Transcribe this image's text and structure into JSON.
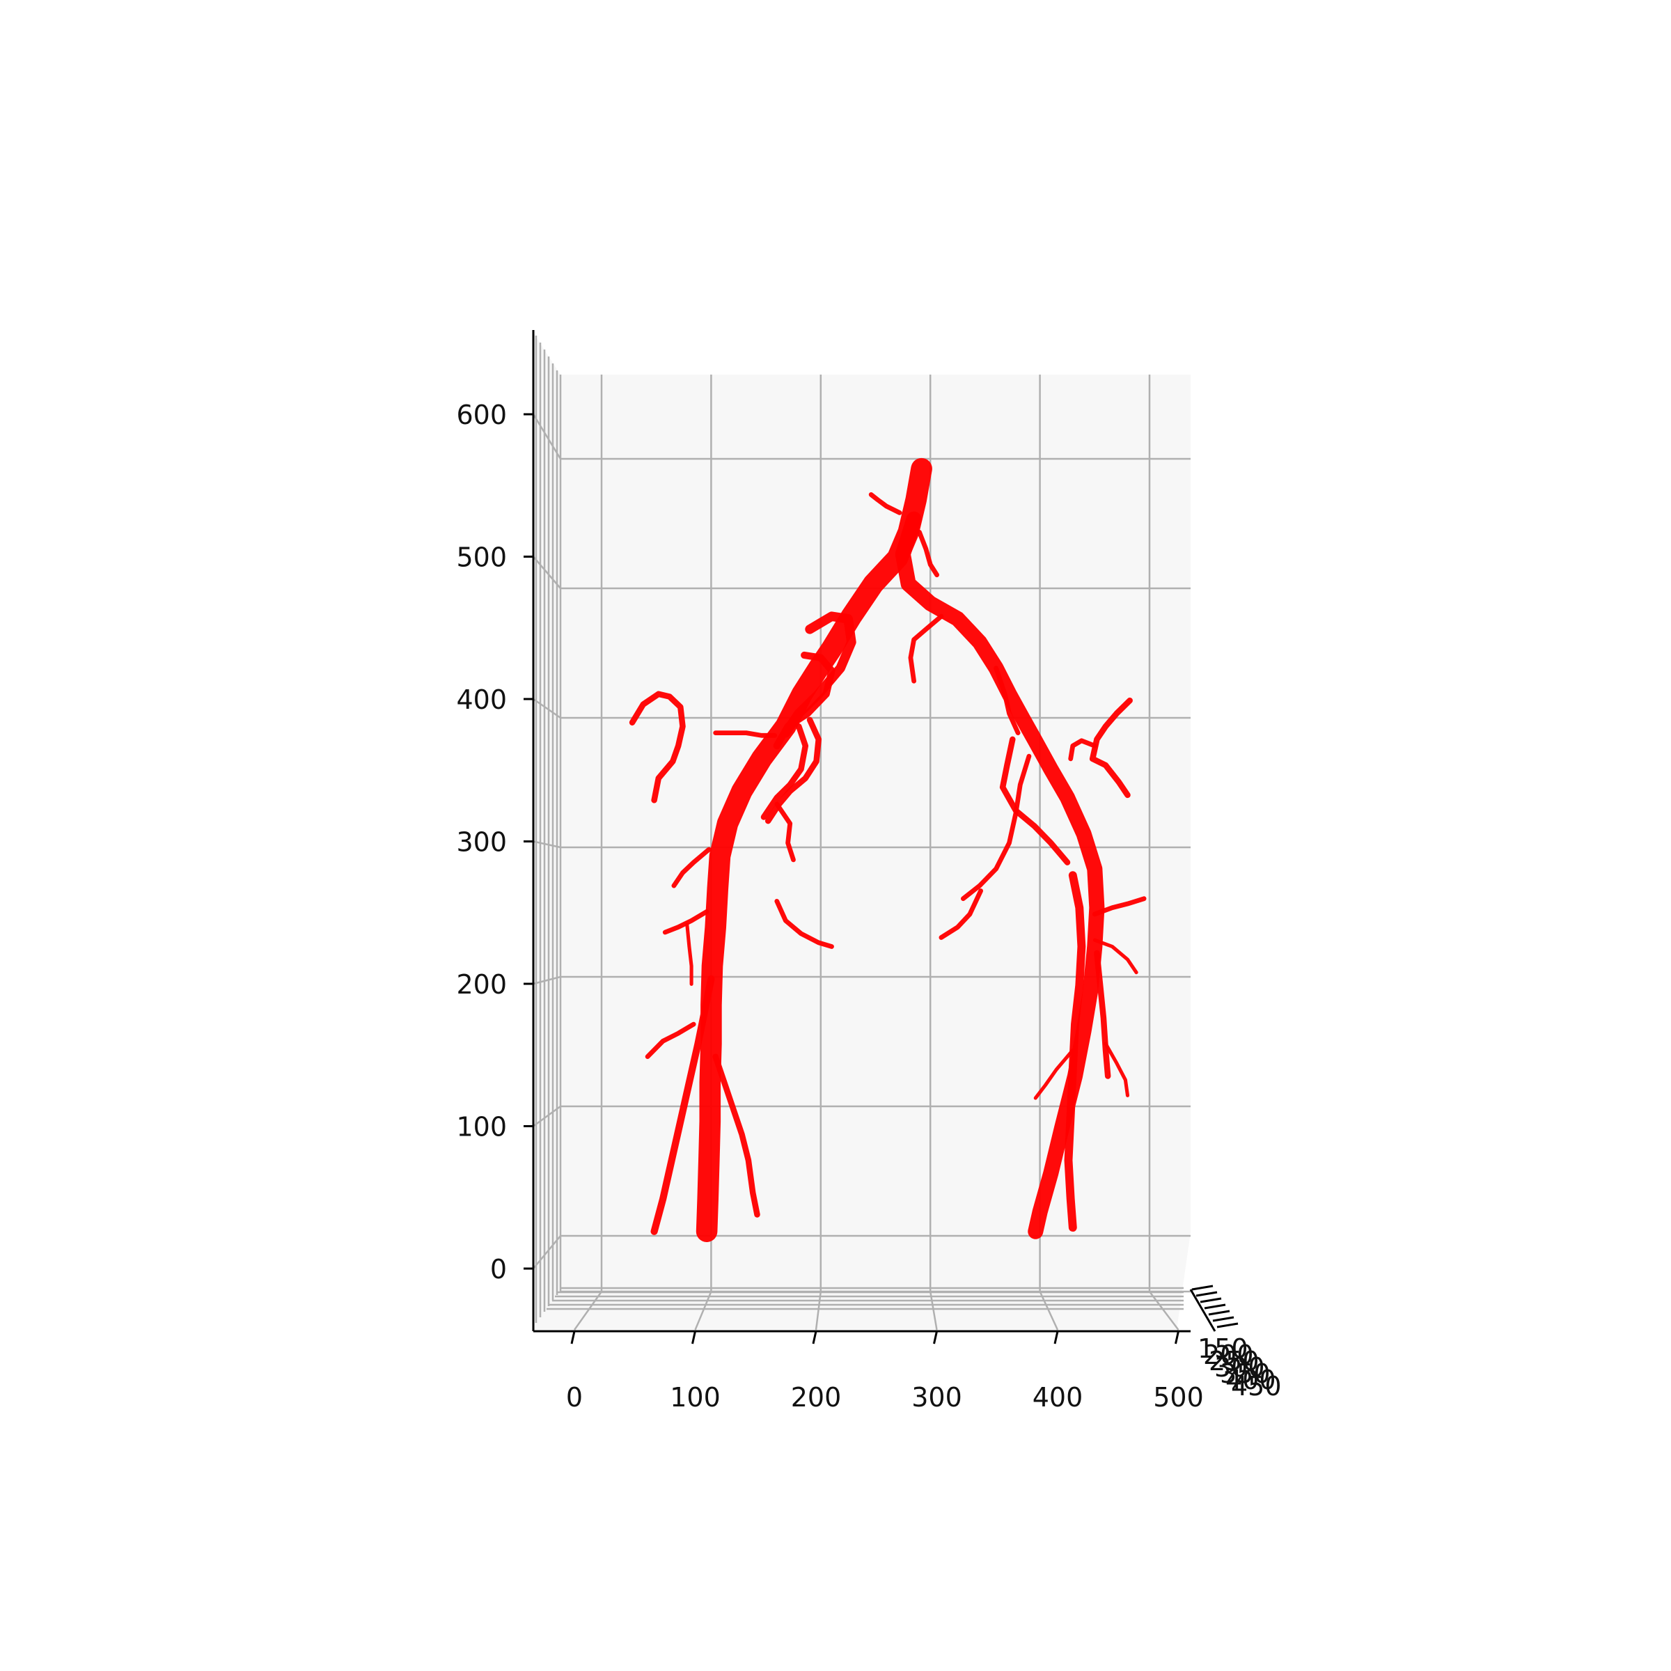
{
  "chart_data": {
    "type": "3d-vessel-tree",
    "title": "",
    "xlabel": "",
    "ylabel": "",
    "zlabel": "",
    "x_ticks": [
      "0",
      "100",
      "200",
      "300",
      "400",
      "500"
    ],
    "z_ticks": [
      "0",
      "100",
      "200",
      "300",
      "400",
      "500",
      "600"
    ],
    "depth_ticks": [
      "150",
      "200",
      "250",
      "300",
      "350",
      "400",
      "450"
    ],
    "xlim": [
      0,
      520
    ],
    "zlim": [
      0,
      640
    ],
    "grid": true,
    "view": "front (elevation 0)",
    "series_color": "#ff0000",
    "pane_color": "#f7f7f7",
    "grid_color": "#b0b0b0",
    "vessels": [
      {
        "name": "aorta",
        "radius": 18,
        "points": [
          [
            292,
            594
          ],
          [
            287,
            570
          ],
          [
            280,
            545
          ],
          [
            270,
            525
          ],
          [
            248,
            505
          ],
          [
            228,
            480
          ],
          [
            210,
            455
          ],
          [
            198,
            440
          ],
          [
            183,
            420
          ],
          [
            168,
            395
          ],
          [
            146,
            370
          ],
          [
            128,
            345
          ],
          [
            115,
            320
          ],
          [
            108,
            295
          ],
          [
            106,
            270
          ],
          [
            104,
            240
          ],
          [
            101,
            210
          ],
          [
            100,
            180
          ],
          [
            100,
            150
          ],
          [
            99,
            120
          ],
          [
            99,
            90
          ],
          [
            98,
            60
          ],
          [
            97,
            30
          ],
          [
            96,
            5
          ]
        ]
      },
      {
        "name": "aorta-right-trunk",
        "radius": 13,
        "points": [
          [
            285,
            555
          ],
          [
            275,
            528
          ],
          [
            280,
            505
          ],
          [
            300,
            490
          ],
          [
            325,
            478
          ],
          [
            345,
            460
          ],
          [
            360,
            440
          ],
          [
            372,
            420
          ],
          [
            385,
            400
          ],
          [
            395,
            385
          ],
          [
            410,
            362
          ],
          [
            425,
            340
          ],
          [
            440,
            312
          ],
          [
            450,
            285
          ],
          [
            452,
            255
          ],
          [
            450,
            225
          ],
          [
            446,
            190
          ],
          [
            440,
            160
          ],
          [
            432,
            125
          ],
          [
            420,
            85
          ],
          [
            410,
            50
          ],
          [
            400,
            20
          ],
          [
            396,
            5
          ]
        ]
      },
      {
        "name": "left-loop-a",
        "radius": 8,
        "points": [
          [
            190,
            470
          ],
          [
            210,
            480
          ],
          [
            225,
            478
          ],
          [
            228,
            460
          ],
          [
            218,
            440
          ],
          [
            198,
            420
          ],
          [
            180,
            405
          ],
          [
            168,
            390
          ]
        ]
      },
      {
        "name": "left-loop-b",
        "radius": 6,
        "points": [
          [
            185,
            450
          ],
          [
            200,
            448
          ],
          [
            210,
            438
          ],
          [
            205,
            420
          ],
          [
            188,
            405
          ],
          [
            170,
            395
          ],
          [
            160,
            380
          ]
        ]
      },
      {
        "name": "left-inner-1",
        "radius": 5,
        "points": [
          [
            190,
            400
          ],
          [
            198,
            385
          ],
          [
            196,
            368
          ],
          [
            186,
            355
          ],
          [
            172,
            345
          ],
          [
            162,
            335
          ],
          [
            152,
            322
          ]
        ]
      },
      {
        "name": "left-inner-2",
        "radius": 5,
        "points": [
          [
            180,
            395
          ],
          [
            186,
            380
          ],
          [
            182,
            362
          ],
          [
            172,
            350
          ],
          [
            160,
            340
          ],
          [
            148,
            325
          ]
        ]
      },
      {
        "name": "left-inner-3",
        "radius": 4,
        "points": [
          [
            160,
            335
          ],
          [
            172,
            320
          ],
          [
            170,
            305
          ],
          [
            175,
            292
          ]
        ]
      },
      {
        "name": "left-low-branch-a",
        "radius": 6,
        "points": [
          [
            100,
            200
          ],
          [
            94,
            175
          ],
          [
            88,
            150
          ],
          [
            80,
            120
          ],
          [
            72,
            90
          ],
          [
            64,
            60
          ],
          [
            56,
            30
          ],
          [
            48,
            5
          ]
        ]
      },
      {
        "name": "left-low-branch-b",
        "radius": 5,
        "points": [
          [
            104,
            140
          ],
          [
            112,
            120
          ],
          [
            120,
            100
          ],
          [
            128,
            80
          ],
          [
            134,
            60
          ],
          [
            138,
            35
          ],
          [
            142,
            18
          ]
        ]
      },
      {
        "name": "right-secondary",
        "radius": 7,
        "points": [
          [
            430,
            280
          ],
          [
            436,
            255
          ],
          [
            438,
            225
          ],
          [
            436,
            195
          ],
          [
            432,
            165
          ],
          [
            430,
            130
          ],
          [
            428,
            95
          ],
          [
            426,
            60
          ],
          [
            428,
            30
          ],
          [
            430,
            8
          ]
        ]
      },
      {
        "name": "right-secondary-b",
        "radius": 5,
        "points": [
          [
            452,
            220
          ],
          [
            455,
            195
          ],
          [
            458,
            170
          ],
          [
            460,
            145
          ],
          [
            462,
            125
          ]
        ]
      },
      {
        "name": "right-inner-1",
        "radius": 5,
        "points": [
          [
            375,
            385
          ],
          [
            370,
            365
          ],
          [
            366,
            348
          ],
          [
            378,
            330
          ],
          [
            395,
            318
          ],
          [
            410,
            305
          ],
          [
            425,
            290
          ]
        ]
      },
      {
        "name": "right-inner-2",
        "radius": 4,
        "points": [
          [
            360,
            440
          ],
          [
            368,
            420
          ],
          [
            372,
            405
          ],
          [
            380,
            390
          ]
        ]
      },
      {
        "name": "right-inner-3",
        "radius": 4,
        "points": [
          [
            390,
            372
          ],
          [
            382,
            350
          ],
          [
            378,
            328
          ],
          [
            372,
            305
          ],
          [
            360,
            285
          ],
          [
            345,
            272
          ],
          [
            330,
            262
          ]
        ]
      },
      {
        "name": "right-inner-4",
        "radius": 4,
        "points": [
          [
            346,
            268
          ],
          [
            336,
            250
          ],
          [
            325,
            240
          ],
          [
            310,
            232
          ]
        ]
      },
      {
        "name": "left-inner-4",
        "radius": 4,
        "points": [
          [
            160,
            260
          ],
          [
            168,
            245
          ],
          [
            182,
            235
          ],
          [
            198,
            228
          ],
          [
            210,
            225
          ]
        ]
      },
      {
        "name": "upper-left-tortuous",
        "radius": 5,
        "points": [
          [
            28,
            398
          ],
          [
            38,
            412
          ],
          [
            52,
            420
          ],
          [
            62,
            418
          ],
          [
            72,
            410
          ],
          [
            74,
            395
          ],
          [
            70,
            380
          ],
          [
            65,
            368
          ],
          [
            52,
            355
          ],
          [
            48,
            338
          ]
        ]
      },
      {
        "name": "upper-right-tortuous",
        "radius": 5,
        "points": [
          [
            482,
            415
          ],
          [
            470,
            405
          ],
          [
            460,
            395
          ],
          [
            452,
            385
          ],
          [
            448,
            370
          ],
          [
            460,
            365
          ],
          [
            472,
            352
          ],
          [
            480,
            342
          ]
        ]
      },
      {
        "name": "upper-right-tortuous-b",
        "radius": 4,
        "points": [
          [
            450,
            380
          ],
          [
            438,
            384
          ],
          [
            430,
            380
          ],
          [
            428,
            370
          ]
        ]
      },
      {
        "name": "left-side-twig-1",
        "radius": 4,
        "points": [
          [
            104,
            390
          ],
          [
            118,
            390
          ],
          [
            132,
            390
          ],
          [
            146,
            388
          ],
          [
            158,
            388
          ]
        ]
      },
      {
        "name": "left-side-twig-2",
        "radius": 4,
        "points": [
          [
            98,
            300
          ],
          [
            84,
            290
          ],
          [
            74,
            282
          ],
          [
            66,
            272
          ]
        ]
      },
      {
        "name": "left-side-twig-3",
        "radius": 4,
        "points": [
          [
            96,
            252
          ],
          [
            82,
            245
          ],
          [
            70,
            240
          ],
          [
            58,
            236
          ]
        ]
      },
      {
        "name": "left-side-twig-4",
        "radius": 4,
        "points": [
          [
            84,
            165
          ],
          [
            70,
            158
          ],
          [
            56,
            152
          ],
          [
            42,
            140
          ]
        ]
      },
      {
        "name": "left-side-twig-5",
        "radius": 3,
        "points": [
          [
            78,
            242
          ],
          [
            80,
            225
          ],
          [
            82,
            210
          ],
          [
            82,
            196
          ]
        ]
      },
      {
        "name": "right-side-twig-1",
        "radius": 4,
        "points": [
          [
            450,
            250
          ],
          [
            466,
            255
          ],
          [
            480,
            258
          ],
          [
            495,
            262
          ]
        ]
      },
      {
        "name": "right-side-twig-2",
        "radius": 3,
        "points": [
          [
            450,
            230
          ],
          [
            466,
            225
          ],
          [
            480,
            215
          ],
          [
            488,
            205
          ]
        ]
      },
      {
        "name": "right-side-twig-3",
        "radius": 3,
        "points": [
          [
            460,
            150
          ],
          [
            470,
            135
          ],
          [
            478,
            122
          ],
          [
            480,
            110
          ]
        ]
      },
      {
        "name": "right-side-twig-4",
        "radius": 3,
        "points": [
          [
            430,
            145
          ],
          [
            415,
            130
          ],
          [
            405,
            118
          ],
          [
            396,
            108
          ]
        ]
      },
      {
        "name": "top-twig-left",
        "radius": 4,
        "points": [
          [
            272,
            560
          ],
          [
            260,
            565
          ],
          [
            252,
            570
          ],
          [
            246,
            574
          ]
        ]
      },
      {
        "name": "top-twig-right",
        "radius": 4,
        "points": [
          [
            290,
            545
          ],
          [
            296,
            532
          ],
          [
            300,
            520
          ],
          [
            306,
            512
          ]
        ]
      },
      {
        "name": "mid-twig",
        "radius": 4,
        "points": [
          [
            310,
            480
          ],
          [
            296,
            470
          ],
          [
            285,
            462
          ],
          [
            282,
            448
          ],
          [
            285,
            430
          ]
        ]
      }
    ]
  }
}
